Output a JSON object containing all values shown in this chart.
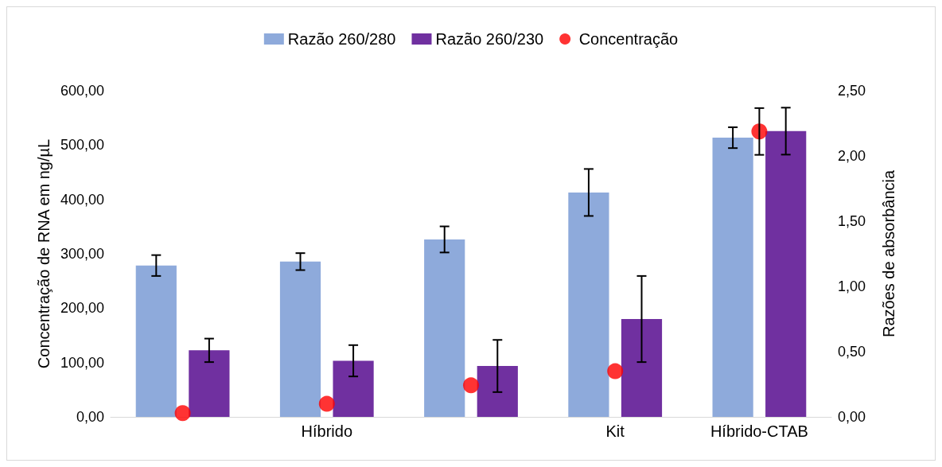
{
  "chart_data": {
    "type": "bar",
    "ylabel": "Concentração de RNA em ng/µL",
    "y2label": "Razões de absorbância",
    "categories": [
      null,
      "Híbrido",
      null,
      "Kit",
      "Híbrido-CTAB"
    ],
    "series": [
      {
        "name": "Razão 260/280",
        "color": "#8eaadb",
        "axis": "y2",
        "values": [
          1.16,
          1.19,
          1.36,
          1.72,
          2.14
        ],
        "errors": [
          0.08,
          0.065,
          0.1,
          0.18,
          0.08
        ]
      },
      {
        "name": "Razão 260/230",
        "color": "#7030a0",
        "axis": "y2",
        "values": [
          0.51,
          0.43,
          0.39,
          0.75,
          2.19
        ],
        "errors": [
          0.09,
          0.12,
          0.2,
          0.33,
          0.18
        ]
      },
      {
        "name": "Concentração",
        "type": "scatter",
        "color": "#ff0000",
        "values": [
          7,
          24,
          58,
          84,
          525
        ],
        "errors": [
          null,
          null,
          null,
          null,
          43
        ]
      }
    ],
    "ylim": [
      0,
      600
    ],
    "yticks": [
      {
        "value": 0,
        "label": "0,00"
      },
      {
        "value": 100,
        "label": "100,00"
      },
      {
        "value": 200,
        "label": "200,00"
      },
      {
        "value": 300,
        "label": "300,00"
      },
      {
        "value": 400,
        "label": "400,00"
      },
      {
        "value": 500,
        "label": "500,00"
      },
      {
        "value": 600,
        "label": "600,00"
      }
    ],
    "y2lim": [
      0,
      2.5
    ],
    "y2ticks": [
      {
        "value": 0,
        "label": "0,00"
      },
      {
        "value": 0.5,
        "label": "0,50"
      },
      {
        "value": 1,
        "label": "1,00"
      },
      {
        "value": 1.5,
        "label": "1,50"
      },
      {
        "value": 2,
        "label": "2,00"
      },
      {
        "value": 2.5,
        "label": "2,50"
      }
    ],
    "grid": false,
    "legend": "top",
    "marker": "circle"
  }
}
